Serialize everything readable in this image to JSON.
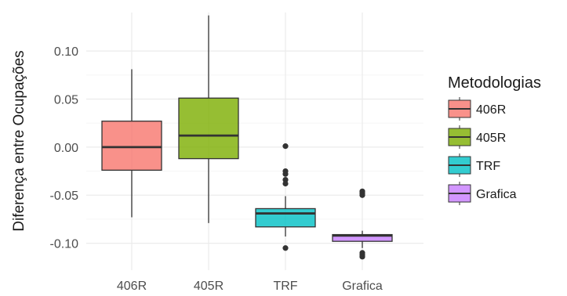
{
  "chart_data": {
    "type": "box",
    "ylabel": "Diferença entre Ocupações",
    "xlabel": "",
    "ylim": [
      -0.128,
      0.14
    ],
    "yticks": [
      0.1,
      0.05,
      0.0,
      -0.05,
      -0.1
    ],
    "ytick_labels": [
      "0.10",
      "0.05",
      "0.00",
      "-0.05",
      "-0.10"
    ],
    "grid": true,
    "legend": {
      "title": "Metodologias",
      "position": "right"
    },
    "categories": [
      "406R",
      "405R",
      "TRF",
      "Grafica"
    ],
    "series": [
      {
        "name": "406R",
        "color": "#F8766D",
        "whisker_low": -0.073,
        "q1": -0.024,
        "median": 0.0,
        "q3": 0.027,
        "whisker_high": 0.081,
        "outliers": []
      },
      {
        "name": "405R",
        "color": "#7CAE00",
        "whisker_low": -0.079,
        "q1": -0.012,
        "median": 0.012,
        "q3": 0.051,
        "whisker_high": 0.137,
        "outliers": []
      },
      {
        "name": "TRF",
        "color": "#00BFC4",
        "whisker_low": -0.093,
        "q1": -0.083,
        "median": -0.069,
        "q3": -0.064,
        "whisker_high": -0.051,
        "outliers": [
          0.001,
          -0.025,
          -0.028,
          -0.034,
          -0.038,
          -0.105
        ]
      },
      {
        "name": "Grafica",
        "color": "#C77CFF",
        "whisker_low": -0.105,
        "q1": -0.098,
        "median": -0.092,
        "q3": -0.091,
        "whisker_high": -0.087,
        "outliers": [
          -0.046,
          -0.048,
          -0.05,
          -0.11,
          -0.112,
          -0.114
        ]
      }
    ]
  }
}
